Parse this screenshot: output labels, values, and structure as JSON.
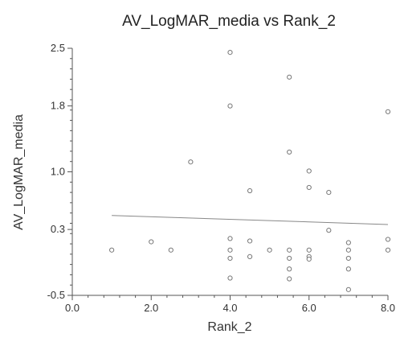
{
  "chart_data": {
    "type": "scatter",
    "title": "AV_LogMAR_media vs Rank_2",
    "xlabel": "Rank_2",
    "ylabel": "AV_LogMAR_media",
    "xlim": [
      0.0,
      8.0
    ],
    "ylim": [
      -0.5,
      2.5
    ],
    "x_ticks": [
      "0.0",
      "2.0",
      "4.0",
      "6.0",
      "8.0"
    ],
    "y_ticks": [
      "-0.5",
      "0.3",
      "1.0",
      "1.8",
      "2.5"
    ],
    "grid": false,
    "legend": "none",
    "colors": {
      "marker": "#777777",
      "line": "#888888",
      "axis": "#555555"
    },
    "points": [
      {
        "x": 1.0,
        "y": 0.05
      },
      {
        "x": 2.0,
        "y": 0.15
      },
      {
        "x": 2.5,
        "y": 0.05
      },
      {
        "x": 3.0,
        "y": 1.12
      },
      {
        "x": 4.0,
        "y": 2.45
      },
      {
        "x": 4.0,
        "y": 1.8
      },
      {
        "x": 4.0,
        "y": 0.19
      },
      {
        "x": 4.0,
        "y": 0.05
      },
      {
        "x": 4.0,
        "y": -0.05
      },
      {
        "x": 4.0,
        "y": -0.29
      },
      {
        "x": 4.5,
        "y": 0.77
      },
      {
        "x": 4.5,
        "y": 0.16
      },
      {
        "x": 4.5,
        "y": -0.03
      },
      {
        "x": 5.0,
        "y": 0.05
      },
      {
        "x": 5.5,
        "y": 2.15
      },
      {
        "x": 5.5,
        "y": 1.24
      },
      {
        "x": 5.5,
        "y": 0.05
      },
      {
        "x": 5.5,
        "y": -0.05
      },
      {
        "x": 5.5,
        "y": -0.18
      },
      {
        "x": 5.5,
        "y": -0.3
      },
      {
        "x": 6.0,
        "y": 1.01
      },
      {
        "x": 6.0,
        "y": 0.81
      },
      {
        "x": 6.0,
        "y": 0.05
      },
      {
        "x": 6.0,
        "y": -0.03
      },
      {
        "x": 6.0,
        "y": -0.06
      },
      {
        "x": 6.5,
        "y": 0.75
      },
      {
        "x": 6.5,
        "y": 0.29
      },
      {
        "x": 7.0,
        "y": 0.14
      },
      {
        "x": 7.0,
        "y": 0.05
      },
      {
        "x": 7.0,
        "y": -0.05
      },
      {
        "x": 7.0,
        "y": -0.18
      },
      {
        "x": 7.0,
        "y": -0.43
      },
      {
        "x": 8.0,
        "y": 1.73
      },
      {
        "x": 8.0,
        "y": 0.18
      },
      {
        "x": 8.0,
        "y": 0.05
      }
    ],
    "fit_line": [
      {
        "x": 1.0,
        "y": 0.47
      },
      {
        "x": 8.0,
        "y": 0.36
      }
    ]
  }
}
